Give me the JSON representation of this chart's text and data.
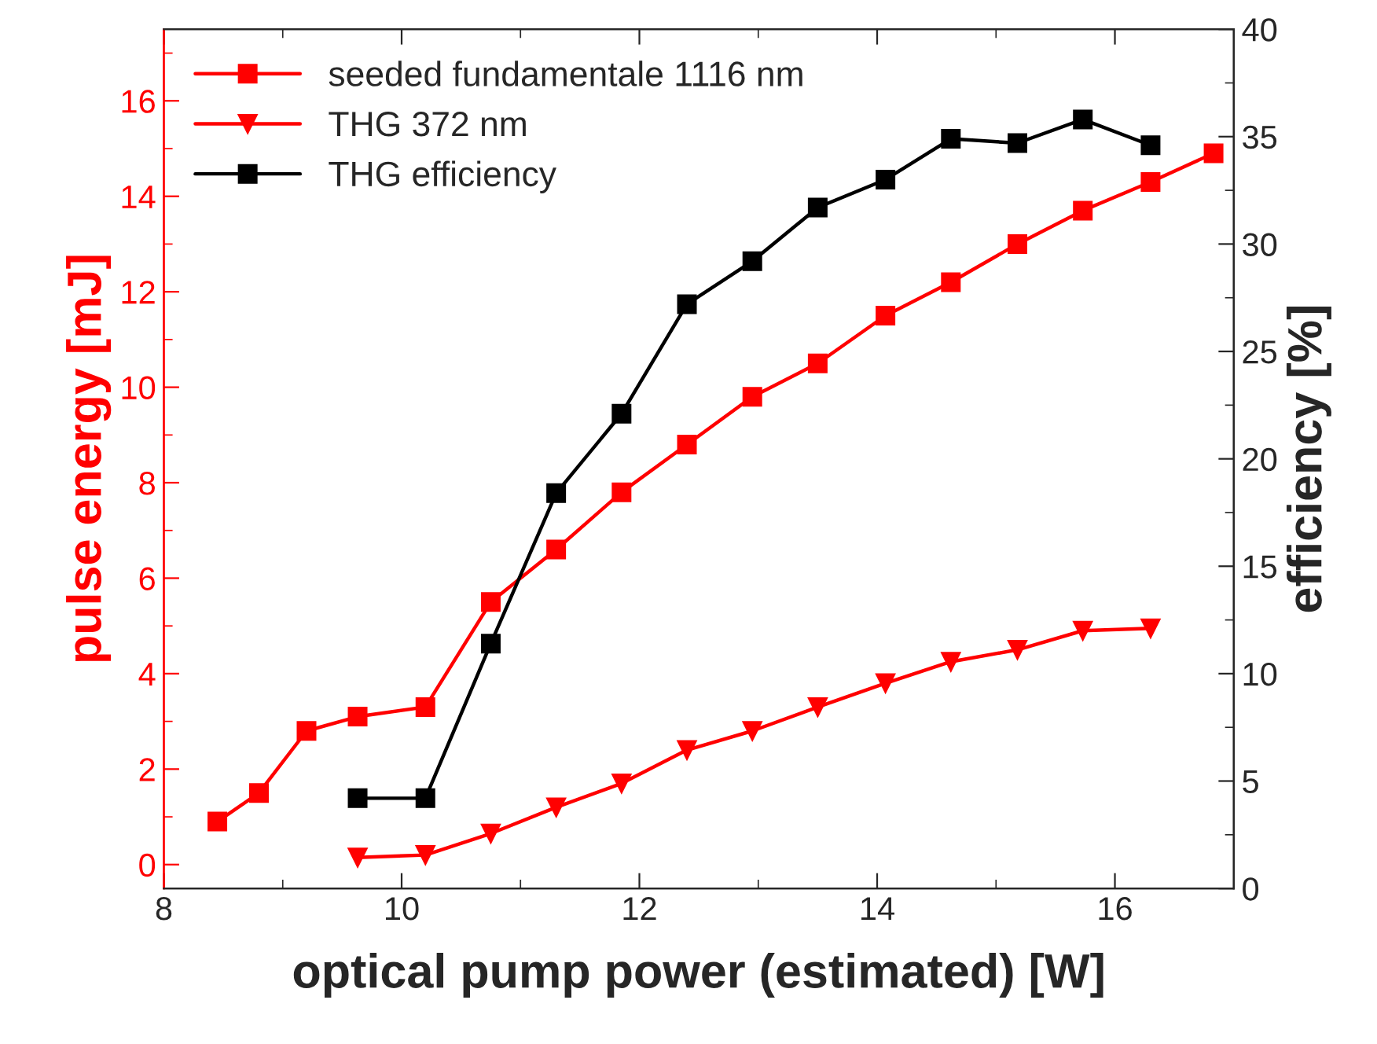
{
  "chart_data": {
    "type": "line",
    "xlabel": "optical pump power (estimated) [W]",
    "ylabel": "pulse energy [mJ]",
    "y2label": "efficiency [%]",
    "xlim": [
      8,
      17
    ],
    "xticks": [
      8,
      10,
      12,
      14,
      16
    ],
    "ylim": [
      -0.5,
      17.5
    ],
    "yticks": [
      0,
      2,
      4,
      6,
      8,
      10,
      12,
      14,
      16
    ],
    "y2lim": [
      0,
      40
    ],
    "y2ticks": [
      0,
      5,
      10,
      15,
      20,
      25,
      30,
      35,
      40
    ],
    "legend": "top left",
    "grid": false,
    "line_style": "solid",
    "series": [
      {
        "name": "seeded fundamentale 1116 nm",
        "color": "#ff0000",
        "marker": "square",
        "x": [
          8.45,
          8.8,
          9.2,
          9.63,
          10.2,
          10.75,
          11.3,
          11.85,
          12.4,
          12.95,
          13.5,
          14.07,
          14.62,
          15.18,
          15.73,
          16.3,
          16.83
        ],
        "values": [
          0.9,
          1.5,
          2.8,
          3.1,
          3.3,
          5.5,
          6.6,
          7.8,
          8.8,
          9.8,
          10.5,
          11.5,
          12.2,
          13.0,
          13.7,
          14.3,
          14.9
        ]
      },
      {
        "name": "THG 372 nm",
        "color": "#ff0000",
        "marker": "triangle",
        "x": [
          9.63,
          10.2,
          10.75,
          11.3,
          11.85,
          12.4,
          12.95,
          13.5,
          14.07,
          14.62,
          15.18,
          15.73,
          16.3
        ],
        "values": [
          0.15,
          0.2,
          0.65,
          1.2,
          1.7,
          2.4,
          2.8,
          3.3,
          3.8,
          4.25,
          4.5,
          4.9,
          4.95
        ]
      },
      {
        "name": "THG efficiency",
        "color": "#000000",
        "marker": "square",
        "axis": "y2",
        "x": [
          9.63,
          10.2,
          10.75,
          11.3,
          11.85,
          12.4,
          12.95,
          13.5,
          14.07,
          14.62,
          15.18,
          15.73,
          16.3
        ],
        "values": [
          4.2,
          4.2,
          11.4,
          18.4,
          22.1,
          27.2,
          29.2,
          31.7,
          33.0,
          34.9,
          34.7,
          35.8,
          34.6
        ]
      }
    ]
  }
}
